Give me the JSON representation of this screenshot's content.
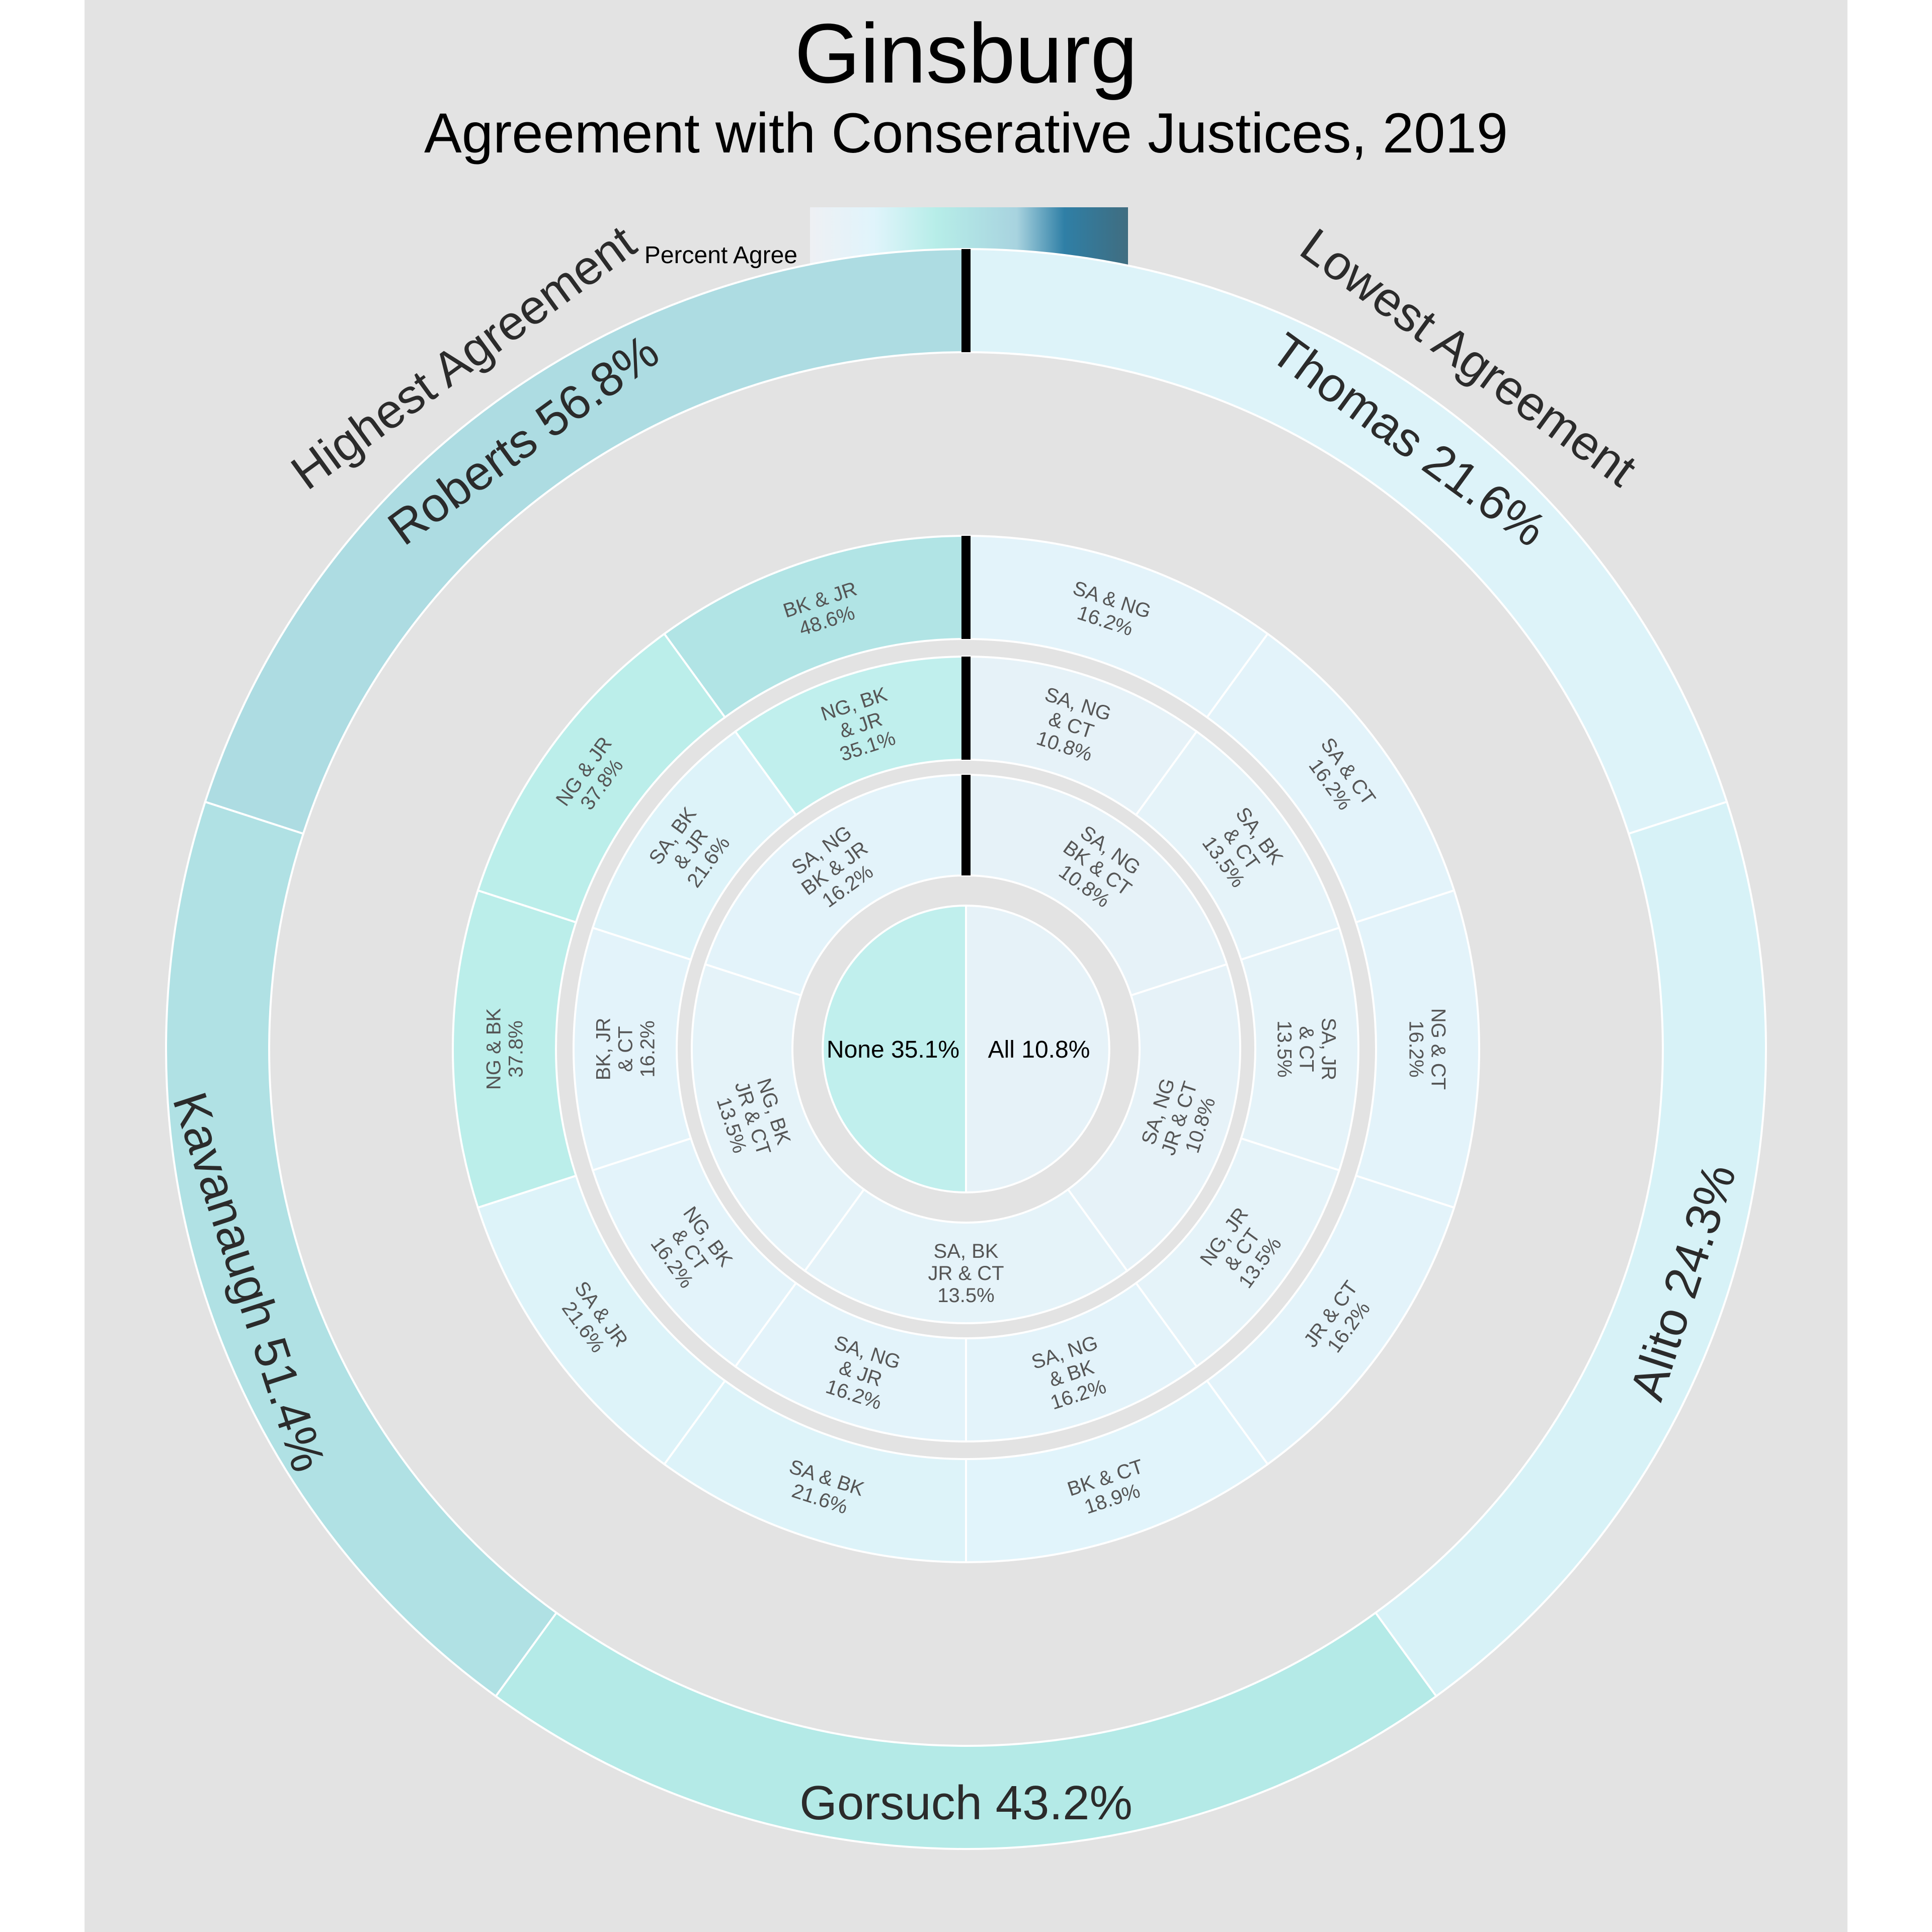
{
  "title": "Ginsburg",
  "subtitle": "Agreement with Conserative Justices, 2019",
  "legend": {
    "title": "Percent Agree",
    "ticks": [
      "0",
      "25",
      "50",
      "75",
      "100"
    ]
  },
  "chart_data": {
    "type": "sunburst",
    "title": "Ginsburg",
    "subtitle": "Agreement with Conserative Justices, 2019",
    "color_scale": {
      "label": "Percent Agree",
      "range": [
        0,
        100
      ],
      "colors": [
        "#eef0f4",
        "#e0f4fb",
        "#b6ede8",
        "#a8d3df",
        "#2f7fa6",
        "#406d80"
      ]
    },
    "side_labels": {
      "left": "Highest  Agreement",
      "right": "Lowest  Agreement"
    },
    "center": [
      {
        "label": "None 35.1%",
        "value": 35.1
      },
      {
        "label": "All 10.8%",
        "value": 10.8
      }
    ],
    "rings": [
      {
        "name": "four justices",
        "segments": [
          {
            "label": "SA, NG BK & CT",
            "value": 10.8
          },
          {
            "label": "SA, NG JR & CT",
            "value": 10.8
          },
          {
            "label": "SA, BK JR & CT",
            "value": 13.5
          },
          {
            "label": "NG, BK JR & CT",
            "value": 13.5
          },
          {
            "label": "SA, NG BK & JR",
            "value": 16.2
          }
        ]
      },
      {
        "name": "three justices",
        "segments": [
          {
            "label": "SA, NG & CT",
            "value": 10.8
          },
          {
            "label": "SA, BK & CT",
            "value": 13.5
          },
          {
            "label": "SA, JR & CT",
            "value": 13.5
          },
          {
            "label": "NG, JR & CT",
            "value": 13.5
          },
          {
            "label": "SA, NG & BK",
            "value": 16.2
          },
          {
            "label": "SA, NG & JR",
            "value": 16.2
          },
          {
            "label": "NG, BK & CT",
            "value": 16.2
          },
          {
            "label": "BK, JR & CT",
            "value": 16.2
          },
          {
            "label": "SA, BK & JR",
            "value": 21.6
          },
          {
            "label": "NG, BK & JR",
            "value": 35.1
          }
        ]
      },
      {
        "name": "two justices",
        "segments": [
          {
            "label": "SA & NG",
            "value": 16.2
          },
          {
            "label": "SA & CT",
            "value": 16.2
          },
          {
            "label": "NG & CT",
            "value": 16.2
          },
          {
            "label": "JR & CT",
            "value": 16.2
          },
          {
            "label": "BK & CT",
            "value": 18.9
          },
          {
            "label": "SA & BK",
            "value": 21.6
          },
          {
            "label": "SA & JR",
            "value": 21.6
          },
          {
            "label": "NG & BK",
            "value": 37.8
          },
          {
            "label": "NG & JR",
            "value": 37.8
          },
          {
            "label": "BK & JR",
            "value": 48.6
          }
        ]
      },
      {
        "name": "single justice",
        "segments": [
          {
            "label": "Thomas 21.6%",
            "value": 21.6
          },
          {
            "label": "Alito 24.3%",
            "value": 24.3
          },
          {
            "label": "Gorsuch 43.2%",
            "value": 43.2
          },
          {
            "label": "Kavanaugh 51.4%",
            "value": 51.4
          },
          {
            "label": "Roberts 56.8%",
            "value": 56.8
          }
        ]
      }
    ]
  }
}
